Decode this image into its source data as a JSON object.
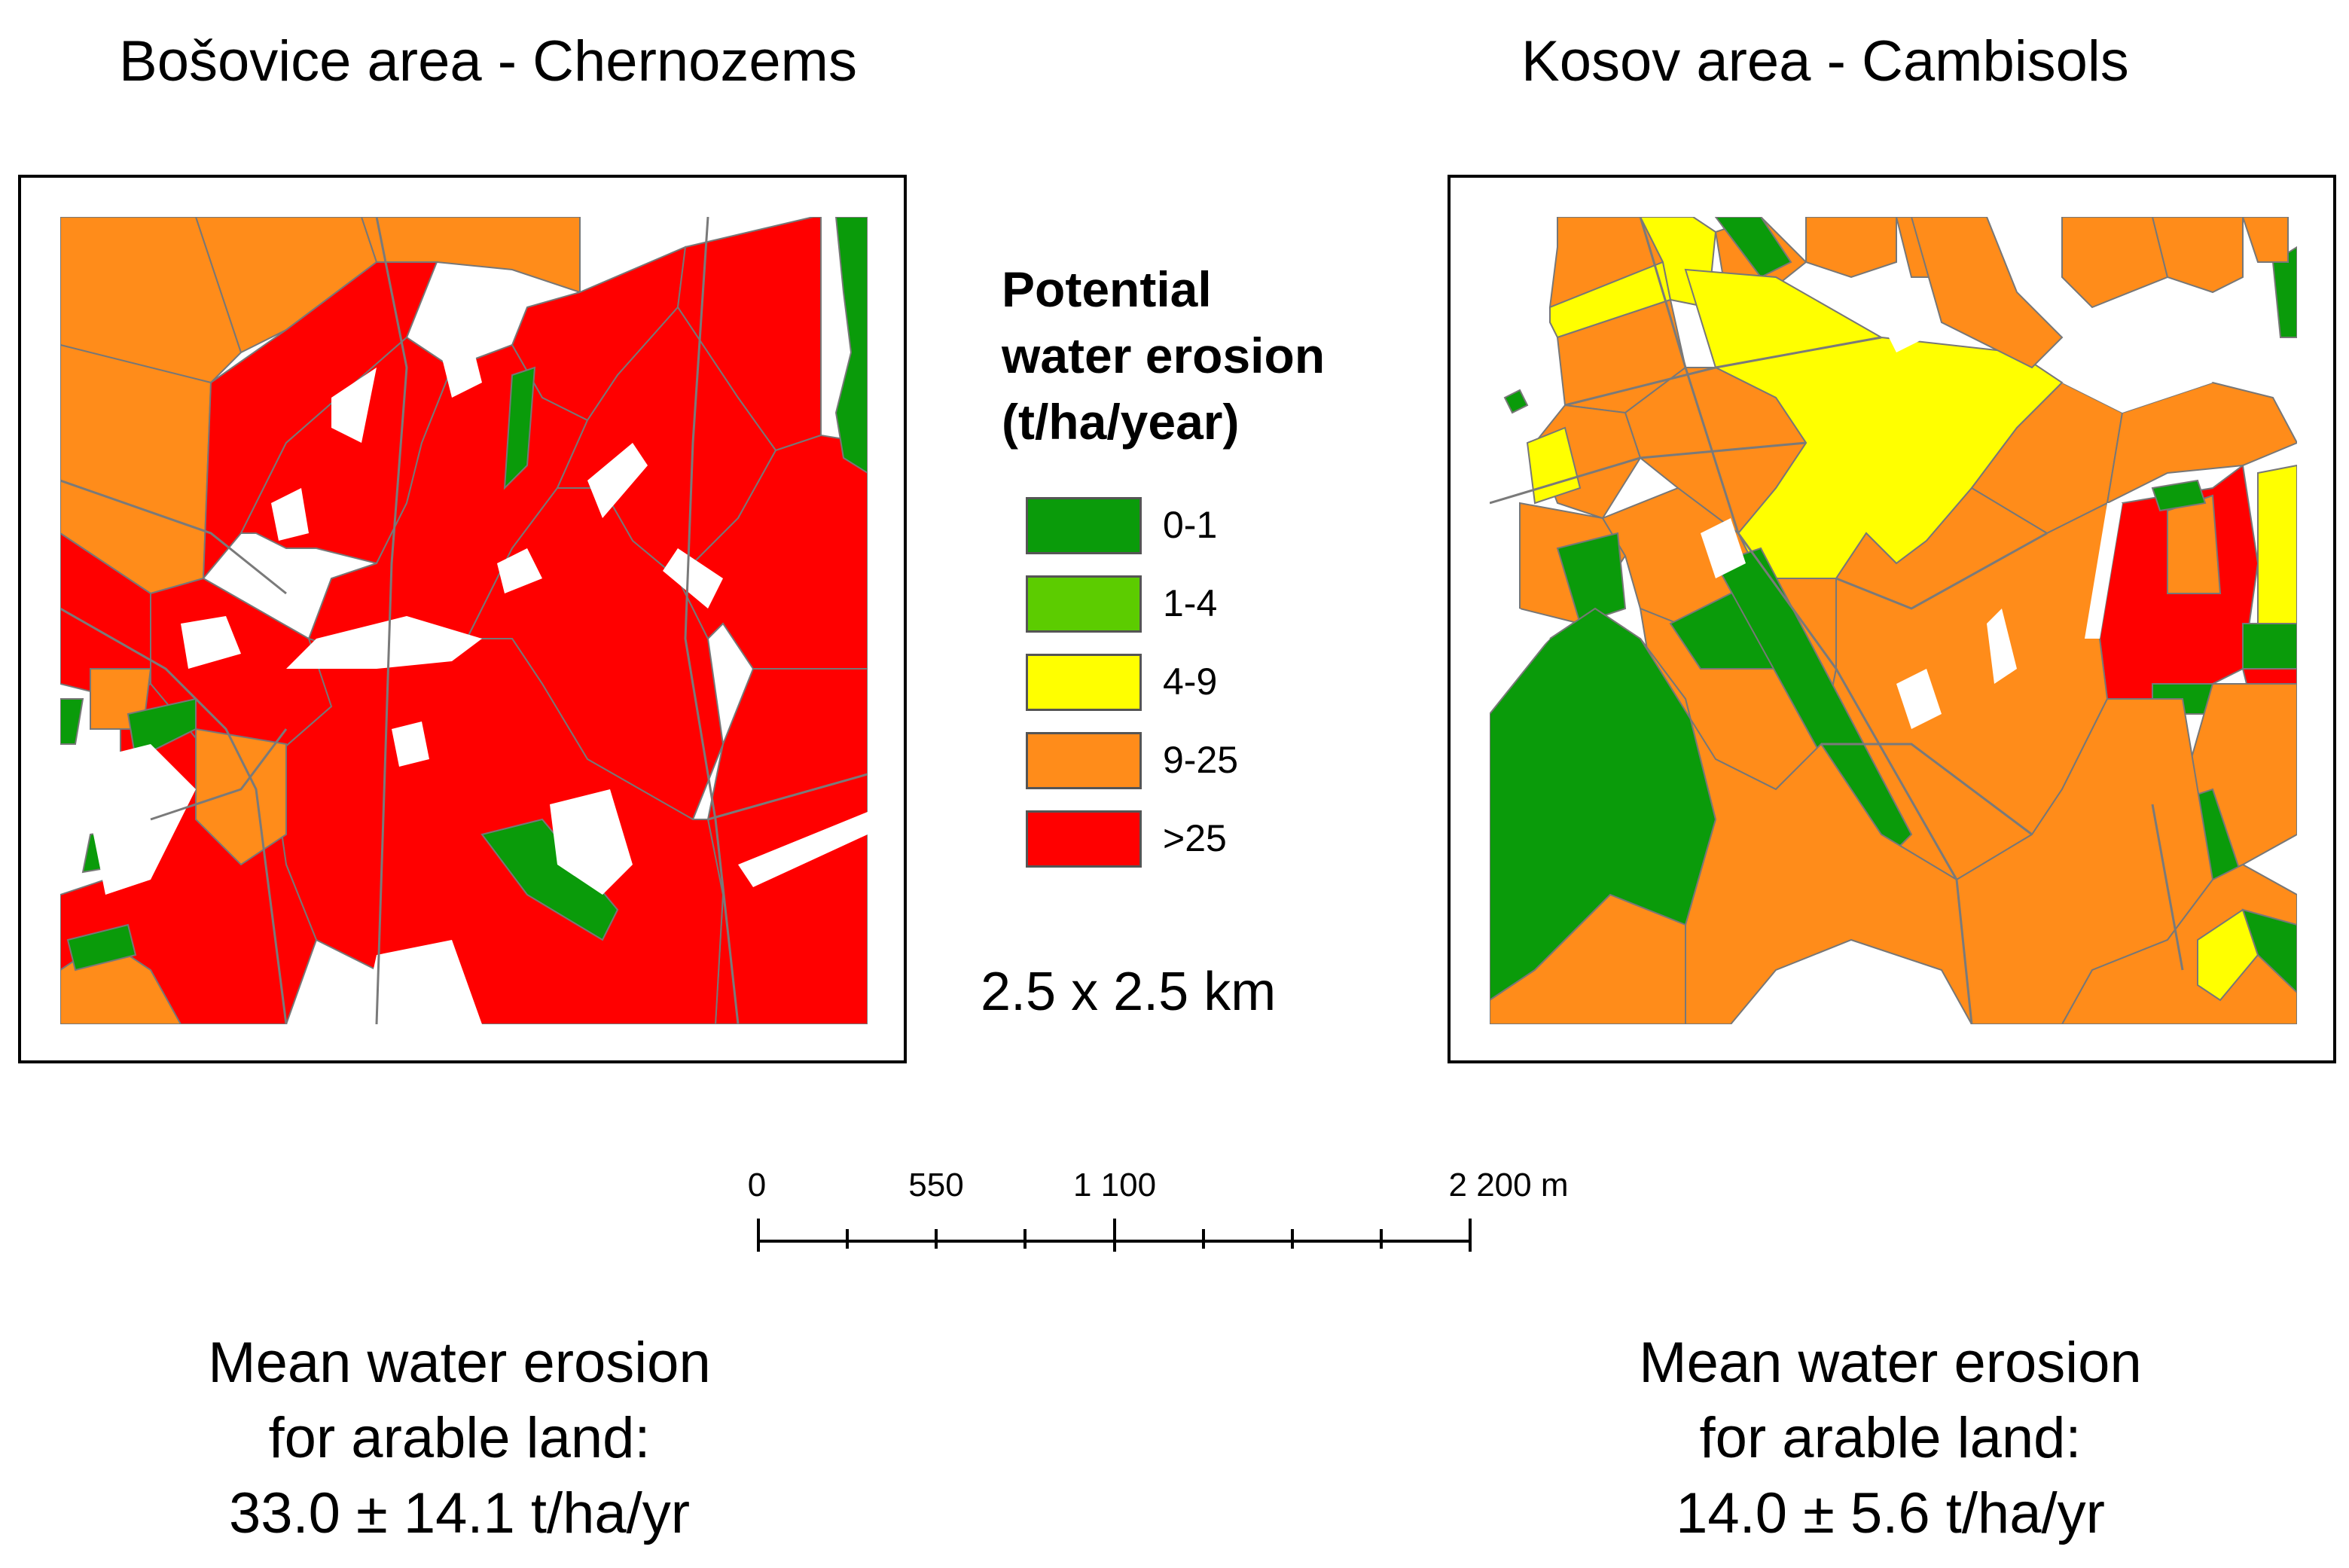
{
  "panels": {
    "left": {
      "title": "Bošovice area - Chernozems",
      "stat": {
        "line1": "Mean water erosion",
        "line2": "for arable land:",
        "line3": "33.0 ± 14.1 t/ha/yr"
      }
    },
    "right": {
      "title": "Kosov area - Cambisols",
      "stat": {
        "line1": "Mean water erosion",
        "line2": "for arable land:",
        "line3": "14.0 ± 5.6 t/ha/yr"
      }
    }
  },
  "legend": {
    "title_lines": [
      "Potential",
      "water erosion",
      "(t/ha/year)"
    ],
    "classes": [
      {
        "label": "0-1",
        "color": "#0a9b0a"
      },
      {
        "label": "1-4",
        "color": "#5ccc00"
      },
      {
        "label": "4-9",
        "color": "#ffff00"
      },
      {
        "label": "9-25",
        "color": "#ff8c1a"
      },
      {
        "label": ">25",
        "color": "#ff0000"
      }
    ]
  },
  "extent_label": "2.5 x 2.5 km",
  "scale_bar": {
    "labels": [
      "0",
      "550",
      "1 100",
      "2 200 m"
    ]
  }
}
